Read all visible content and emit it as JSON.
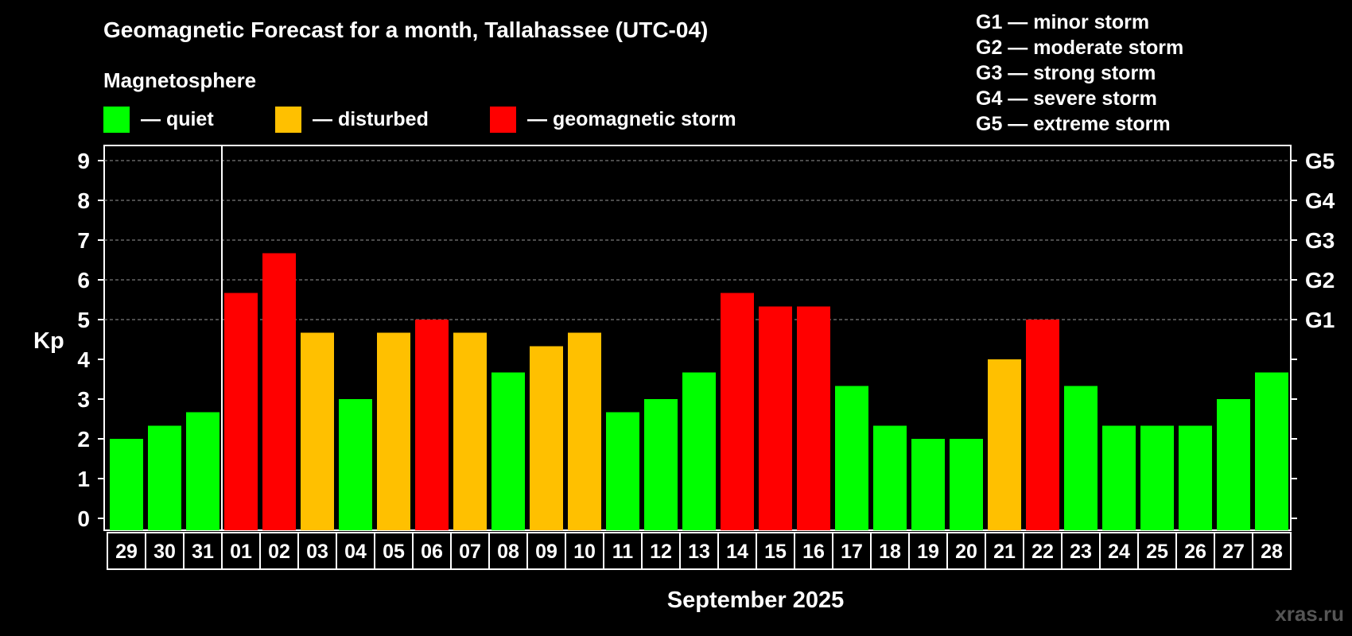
{
  "title": "Geomagnetic Forecast for a month, Tallahassee (UTC-04)",
  "magnetosphere": {
    "title": "Magnetosphere",
    "items": [
      {
        "label": "— quiet",
        "color": "#00ff00"
      },
      {
        "label": "— disturbed",
        "color": "#ffc000"
      },
      {
        "label": "— geomagnetic storm",
        "color": "#ff0000"
      }
    ]
  },
  "storm_scale": [
    "G1 — minor storm",
    "G2 — moderate storm",
    "G3 — strong storm",
    "G4 — severe storm",
    "G5 — extreme storm"
  ],
  "watermark": "xras.ru",
  "chart_data": {
    "type": "bar",
    "title": "Geomagnetic Forecast for a month, Tallahassee (UTC-04)",
    "xlabel": "September 2025",
    "ylabel": "Kp",
    "ylim": [
      0,
      9
    ],
    "yticks": [
      0,
      1,
      2,
      3,
      4,
      5,
      6,
      7,
      8,
      9
    ],
    "right_axis": [
      {
        "kp": 5,
        "label": "G1"
      },
      {
        "kp": 6,
        "label": "G2"
      },
      {
        "kp": 7,
        "label": "G3"
      },
      {
        "kp": 8,
        "label": "G4"
      },
      {
        "kp": 9,
        "label": "G5"
      }
    ],
    "grid_from_kp": 5,
    "month_divider_after": "31",
    "categories": [
      "29",
      "30",
      "31",
      "01",
      "02",
      "03",
      "04",
      "05",
      "06",
      "07",
      "08",
      "09",
      "10",
      "11",
      "12",
      "13",
      "14",
      "15",
      "16",
      "17",
      "18",
      "19",
      "20",
      "21",
      "22",
      "23",
      "24",
      "25",
      "26",
      "27",
      "28"
    ],
    "values": [
      2,
      2.33,
      2.67,
      5.67,
      6.67,
      4.67,
      3,
      4.67,
      5,
      4.67,
      3.67,
      4.33,
      4.67,
      2.67,
      3,
      3.67,
      5.67,
      5.33,
      5.33,
      3.33,
      2.33,
      2,
      2,
      4,
      5,
      3.33,
      2.33,
      2.33,
      2.33,
      3,
      3.67
    ],
    "levels": [
      "quiet",
      "quiet",
      "quiet",
      "storm",
      "storm",
      "disturbed",
      "quiet",
      "disturbed",
      "storm",
      "disturbed",
      "quiet",
      "disturbed",
      "disturbed",
      "quiet",
      "quiet",
      "quiet",
      "storm",
      "storm",
      "storm",
      "quiet",
      "quiet",
      "quiet",
      "quiet",
      "disturbed",
      "storm",
      "quiet",
      "quiet",
      "quiet",
      "quiet",
      "quiet",
      "quiet"
    ],
    "level_colors": {
      "quiet": "#00ff00",
      "disturbed": "#ffc000",
      "storm": "#ff0000"
    }
  }
}
